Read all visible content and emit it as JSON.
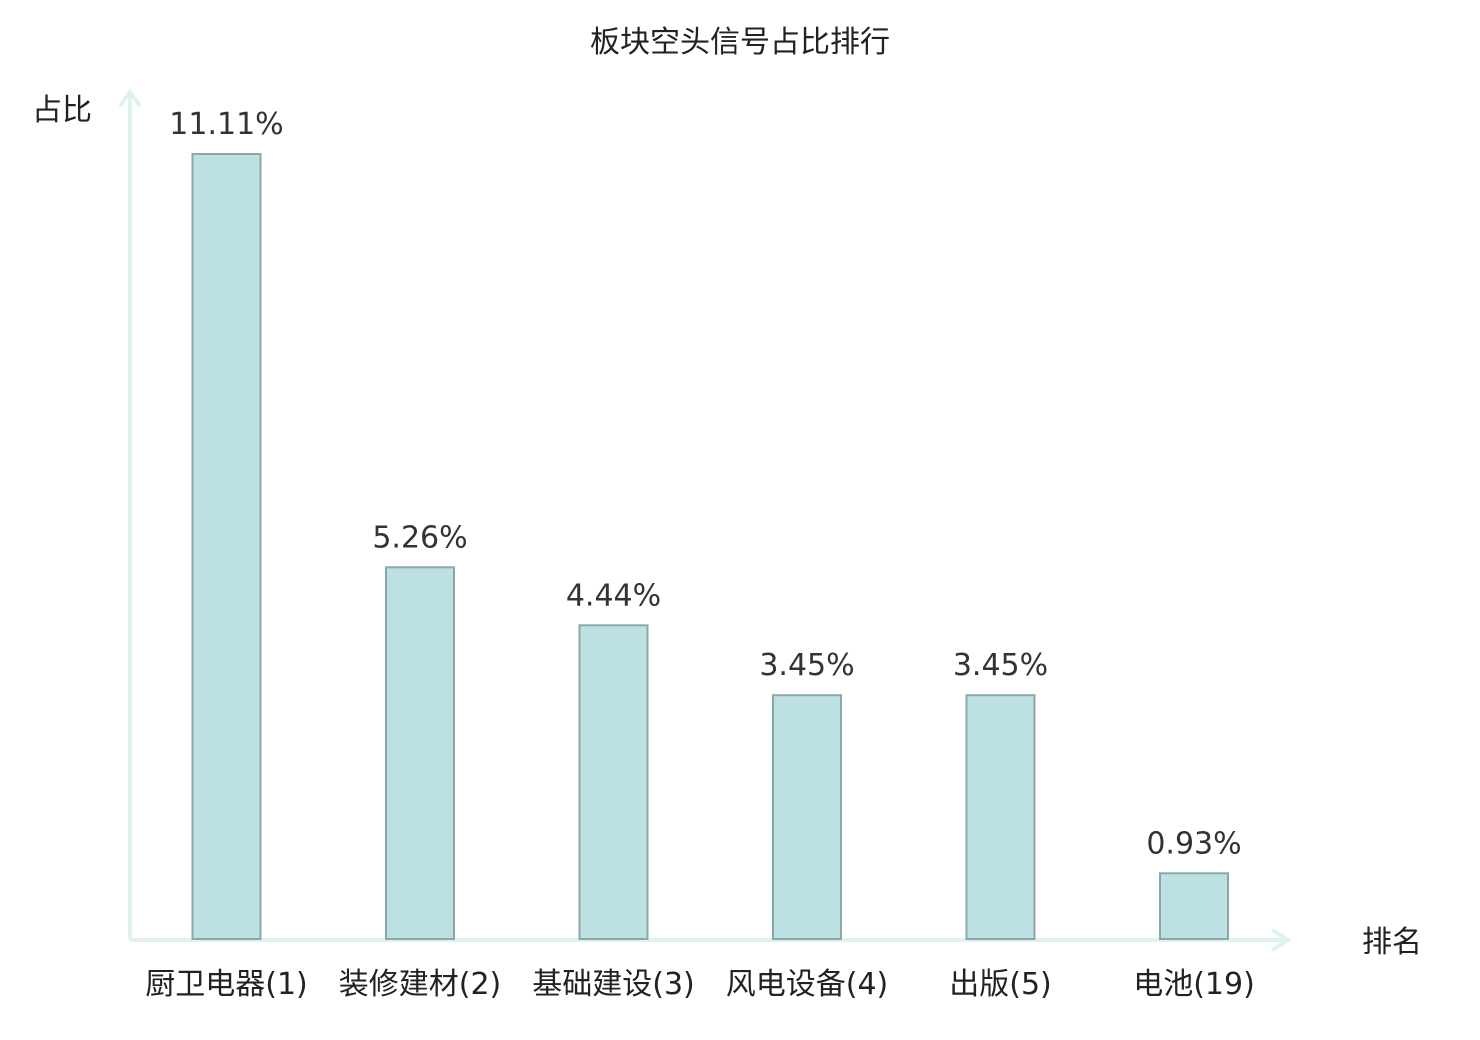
{
  "chart_data": {
    "type": "bar",
    "title": "板块空头信号占比排行",
    "xlabel": "排名",
    "ylabel": "占比",
    "categories": [
      "厨卫电器(1)",
      "装修建材(2)",
      "基础建设(3)",
      "风电设备(4)",
      "出版(5)",
      "电池(19)"
    ],
    "values": [
      11.11,
      5.26,
      4.44,
      3.45,
      3.45,
      0.93
    ],
    "value_labels": [
      "11.11%",
      "5.26%",
      "4.44%",
      "3.45%",
      "3.45%",
      "0.93%"
    ],
    "highlight_index": 5,
    "ylim": [
      0,
      11.11
    ],
    "grid": false,
    "colors": {
      "bar_fill": "#bde0e3",
      "bar_stroke": "#8aa8aa",
      "axis": "#e0f2ef",
      "highlight_text": "#e01010",
      "text": "#222222"
    }
  }
}
